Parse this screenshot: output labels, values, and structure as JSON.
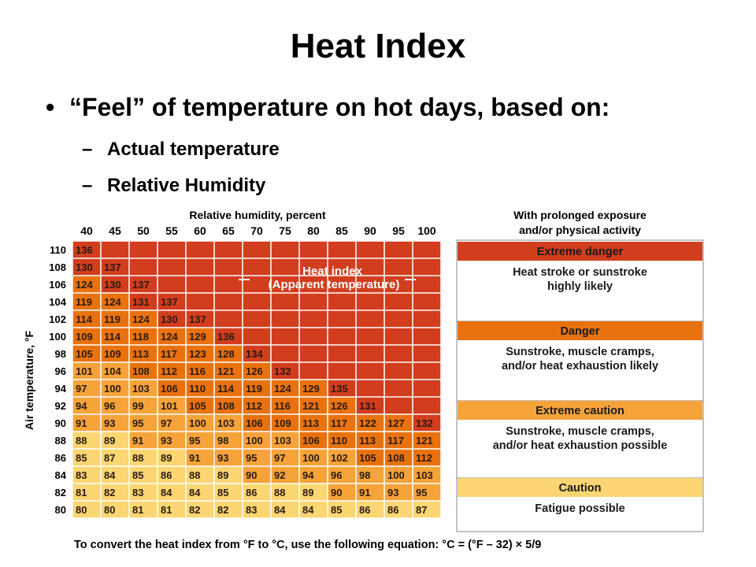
{
  "slide": {
    "title": "Heat Index",
    "bullet": "“Feel” of temperature on hot days, based on:",
    "bullet_marker": "•",
    "sub_marker": "–",
    "sub_items": [
      "Actual temperature",
      "Relative Humidity"
    ]
  },
  "chart_data": {
    "type": "table",
    "title": "Heat index",
    "subtitle": "(Apparent temperature)",
    "xlabel": "Relative humidity, percent",
    "ylabel": "Air temperature, °F",
    "humidity": [
      40,
      45,
      50,
      55,
      60,
      65,
      70,
      75,
      80,
      85,
      90,
      95,
      100
    ],
    "temperatures": [
      110,
      108,
      106,
      104,
      102,
      100,
      98,
      96,
      94,
      92,
      90,
      88,
      86,
      84,
      82,
      80
    ],
    "values": [
      [
        136
      ],
      [
        130,
        137
      ],
      [
        124,
        130,
        137
      ],
      [
        119,
        124,
        131,
        137
      ],
      [
        114,
        119,
        124,
        130,
        137
      ],
      [
        109,
        114,
        118,
        124,
        129,
        136
      ],
      [
        105,
        109,
        113,
        117,
        123,
        128,
        134
      ],
      [
        101,
        104,
        108,
        112,
        116,
        121,
        126,
        132
      ],
      [
        97,
        100,
        103,
        106,
        110,
        114,
        119,
        124,
        129,
        135
      ],
      [
        94,
        96,
        99,
        101,
        105,
        108,
        112,
        116,
        121,
        126,
        131
      ],
      [
        91,
        93,
        95,
        97,
        100,
        103,
        106,
        109,
        113,
        117,
        122,
        127,
        132
      ],
      [
        88,
        89,
        91,
        93,
        95,
        98,
        100,
        103,
        106,
        110,
        113,
        117,
        121
      ],
      [
        85,
        87,
        88,
        89,
        91,
        93,
        95,
        97,
        100,
        102,
        105,
        108,
        112
      ],
      [
        83,
        84,
        85,
        86,
        88,
        89,
        90,
        92,
        94,
        96,
        98,
        100,
        103
      ],
      [
        81,
        82,
        83,
        84,
        84,
        85,
        86,
        88,
        89,
        90,
        91,
        93,
        95
      ],
      [
        80,
        80,
        81,
        81,
        82,
        82,
        83,
        84,
        84,
        85,
        86,
        86,
        87
      ]
    ],
    "footer": "To convert the heat index from °F to °C, use the following equation: °C = (°F – 32) × 5/9",
    "colors": {
      "extreme_danger": "#d23d1e",
      "danger": "#e9720e",
      "extreme_caution": "#f6a33a",
      "caution": "#fbd673",
      "grid": "#ffffff"
    },
    "legend": {
      "heading": [
        "With prolonged exposure",
        "and/or physical activity"
      ],
      "categories": [
        {
          "name": "Extreme danger",
          "color": "#d23d1e",
          "text": [
            "Heat stroke or sunstroke",
            "highly likely"
          ]
        },
        {
          "name": "Danger",
          "color": "#e9720e",
          "text": [
            "Sunstroke, muscle cramps,",
            "and/or heat exhaustion likely"
          ]
        },
        {
          "name": "Extreme caution",
          "color": "#f6a33a",
          "text": [
            "Sunstroke, muscle cramps,",
            "and/or heat exhaustion possible"
          ]
        },
        {
          "name": "Caution",
          "color": "#fbd673",
          "text": [
            "Fatigue possible"
          ]
        }
      ]
    }
  }
}
